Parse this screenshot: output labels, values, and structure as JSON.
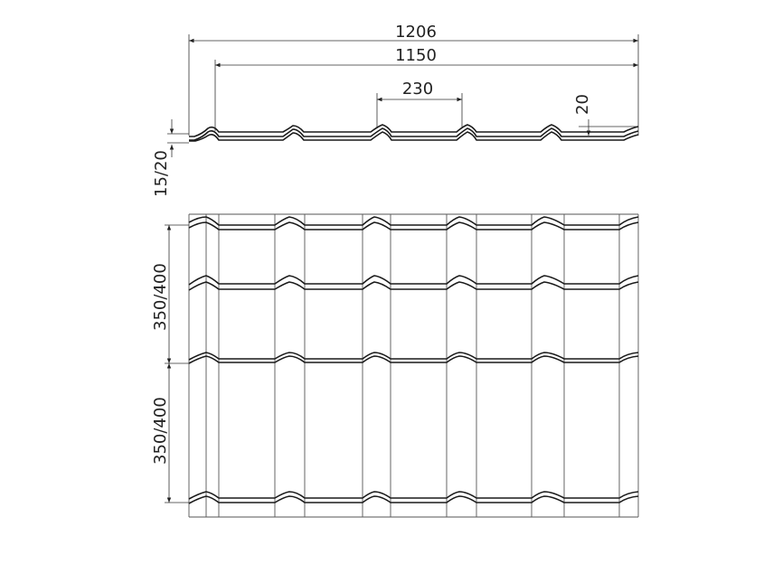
{
  "drawing": {
    "dimensions": {
      "total_width": "1206",
      "effective_width": "1150",
      "wave_pitch": "230",
      "wave_height": "20",
      "profile_thickness": "15/20",
      "tile_step_upper": "350/400",
      "tile_step_lower": "350/400"
    },
    "line_color": "#1a1a1a"
  }
}
